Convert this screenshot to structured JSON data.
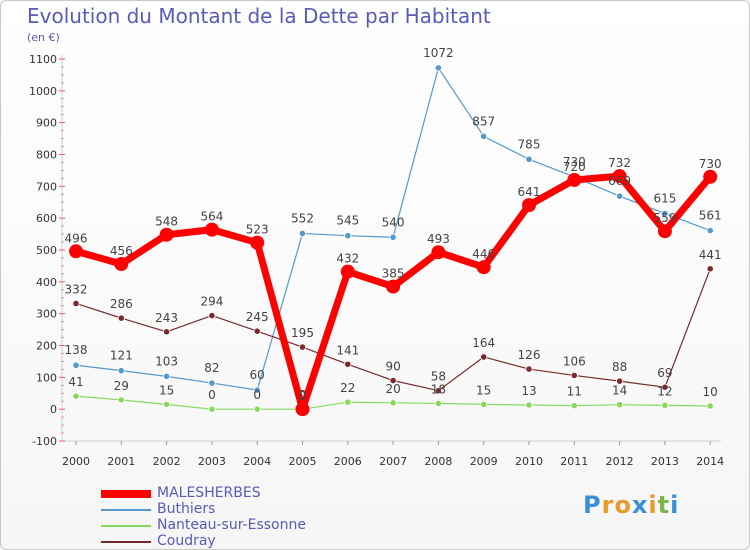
{
  "chart_data": {
    "type": "line",
    "title": "Evolution du Montant de la Dette par Habitant",
    "subtitle": "(en €)",
    "x": [
      "2000",
      "2001",
      "2002",
      "2003",
      "2004",
      "2005",
      "2006",
      "2007",
      "2008",
      "2009",
      "2010",
      "2011",
      "2012",
      "2013",
      "2014"
    ],
    "ylim": [
      -100,
      1100
    ],
    "yticks": [
      -100,
      0,
      100,
      200,
      300,
      400,
      500,
      600,
      700,
      800,
      900,
      1000,
      1100
    ],
    "grid": false,
    "legend_position": "bottom-left",
    "series": [
      {
        "name": "MALESHERBES",
        "color": "#ff0000",
        "values": [
          496,
          456,
          548,
          564,
          523,
          0,
          432,
          385,
          493,
          446,
          641,
          720,
          732,
          559,
          730
        ]
      },
      {
        "name": "Buthiers",
        "color": "#5599cc",
        "values": [
          138,
          121,
          103,
          82,
          60,
          552,
          545,
          540,
          1072,
          857,
          785,
          730,
          669,
          615,
          561
        ]
      },
      {
        "name": "Nanteau-sur-Essonne",
        "color": "#88d860",
        "values": [
          41,
          29,
          15,
          0,
          0,
          0,
          22,
          20,
          18,
          15,
          13,
          11,
          14,
          12,
          10
        ]
      },
      {
        "name": "Coudray",
        "color": "#7a2a2a",
        "values": [
          332,
          286,
          243,
          294,
          245,
          195,
          141,
          90,
          58,
          164,
          126,
          106,
          88,
          69,
          441
        ]
      }
    ]
  },
  "logo": {
    "letters": [
      "P",
      "r",
      "o",
      "x",
      "i",
      "t",
      "i"
    ],
    "colors": [
      "#3b8fd8",
      "#e89a2a",
      "#e89a2a",
      "#3b8fd8",
      "#e89a2a",
      "#7ab648",
      "#3b8fd8"
    ]
  }
}
